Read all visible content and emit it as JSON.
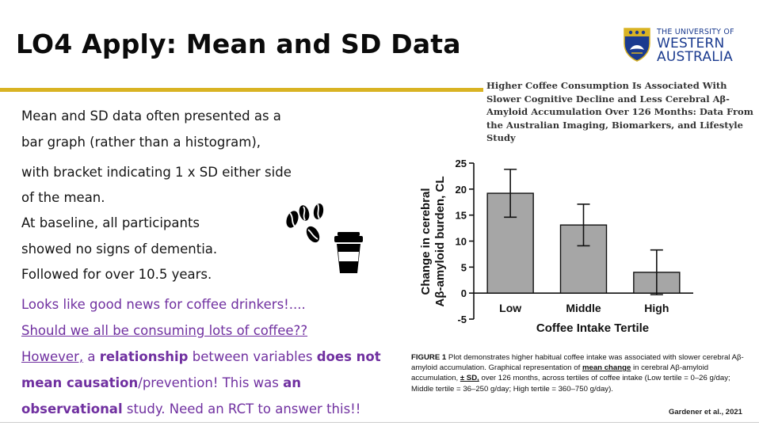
{
  "slide": {
    "title": "LO4 Apply: Mean and SD Data"
  },
  "logo": {
    "line1": "THE UNIVERSITY OF",
    "line2": "WESTERN",
    "line3": "AUSTRALIA"
  },
  "text": {
    "l1": "Mean and SD data often presented as a",
    "l2": "bar graph (rather than a histogram),",
    "l3": "with bracket indicating 1 x SD either side",
    "l4": "of the mean.",
    "l5": "At baseline, all participants",
    "l6": "showed no signs of dementia.",
    "l7": "Followed for over 10.5 years.",
    "p1": "Looks like good news for coffee drinkers!....",
    "p2": "Should we all be consuming lots of coffee??",
    "p3a": "However,",
    "p3b": " a ",
    "p3c": "relationship",
    "p3d": " between variables ",
    "p3e": "does not",
    "p4a": "mean causation",
    "p4b": "/prevention! This was ",
    "p4c": "an",
    "p5a": "observational",
    "p5b": " study. Need an RCT to answer this!!"
  },
  "paper": {
    "title": "Higher Coffee Consumption Is Associated With Slower Cognitive Decline and Less Cerebral Aβ-Amyloid Accumulation Over 126 Months: Data From the Australian Imaging, Biomarkers, and Lifestyle Study"
  },
  "chart_data": {
    "type": "bar",
    "categories": [
      "Low",
      "Middle",
      "High"
    ],
    "values": [
      19.2,
      13.1,
      4.0
    ],
    "error": [
      4.6,
      4.0,
      4.3
    ],
    "xlabel": "Coffee Intake Tertile",
    "ylabel_line1": "Change in cerebral",
    "ylabel_line2": "Aβ-amyloid burden, CL",
    "ylim": [
      -5,
      25
    ],
    "yticks": [
      "-5",
      "0",
      "5",
      "10",
      "15",
      "20",
      "25"
    ],
    "grid": false,
    "bar_color": "#a6a6a6"
  },
  "caption": {
    "c1": "FIGURE 1",
    "c2": " Plot demonstrates higher habitual coffee intake was associated with slower cerebral Aβ-amyloid accumulation. Graphical representation of ",
    "c3": "mean change",
    "c4": " in cerebral Aβ-amyloid accumulation, ",
    "c5": "± SD,",
    "c6": " over 126 months, across tertiles of coffee intake (Low tertile = 0–26 g/day; Middle tertile = 36–250 g/day; High tertile = 360–750 g/day).",
    "cite": "Gardener et al., 2021"
  }
}
